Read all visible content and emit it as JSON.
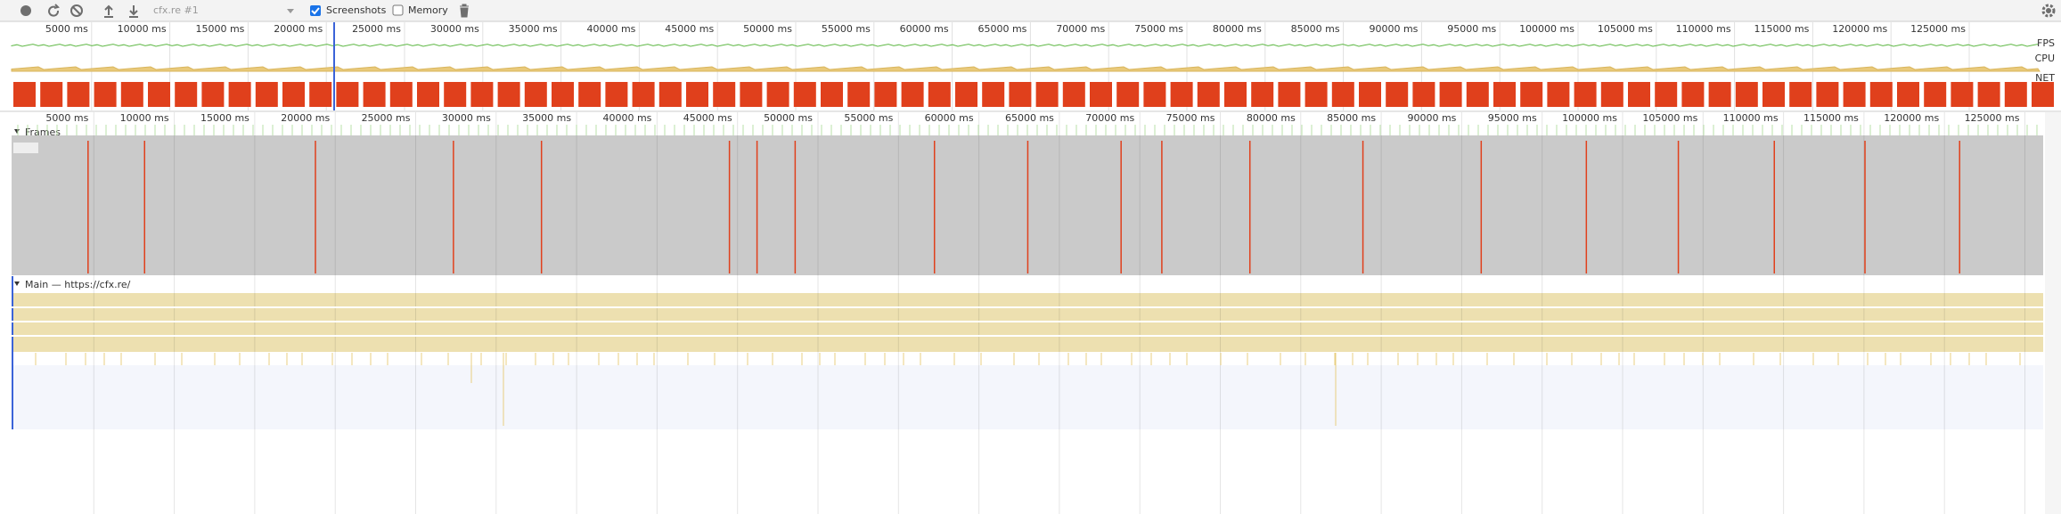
{
  "toolbar": {
    "target": "cfx.re #1",
    "screenshots": "Screenshots",
    "memory": "Memory"
  },
  "overview": {
    "ticks": [
      "5000 ms",
      "10000 ms",
      "15000 ms",
      "20000 ms",
      "25000 ms",
      "30000 ms",
      "35000 ms",
      "40000 ms",
      "45000 ms",
      "50000 ms",
      "55000 ms",
      "60000 ms",
      "65000 ms",
      "70000 ms",
      "75000 ms",
      "80000 ms",
      "85000 ms",
      "90000 ms",
      "95000 ms",
      "100000 ms",
      "105000 ms",
      "110000 ms",
      "115000 ms",
      "120000 ms",
      "125000 ms"
    ],
    "fps": "FPS",
    "cpu": "CPU",
    "net": "NET"
  },
  "timeline": {
    "ticks": [
      "5000 ms",
      "10000 ms",
      "15000 ms",
      "20000 ms",
      "25000 ms",
      "30000 ms",
      "35000 ms",
      "40000 ms",
      "45000 ms",
      "50000 ms",
      "55000 ms",
      "60000 ms",
      "65000 ms",
      "70000 ms",
      "75000 ms",
      "80000 ms",
      "85000 ms",
      "90000 ms",
      "95000 ms",
      "100000 ms",
      "105000 ms",
      "110000 ms",
      "115000 ms",
      "120000 ms",
      "125000 ms"
    ],
    "frames": "Frames",
    "main": "Main — https://cfx.re/"
  }
}
